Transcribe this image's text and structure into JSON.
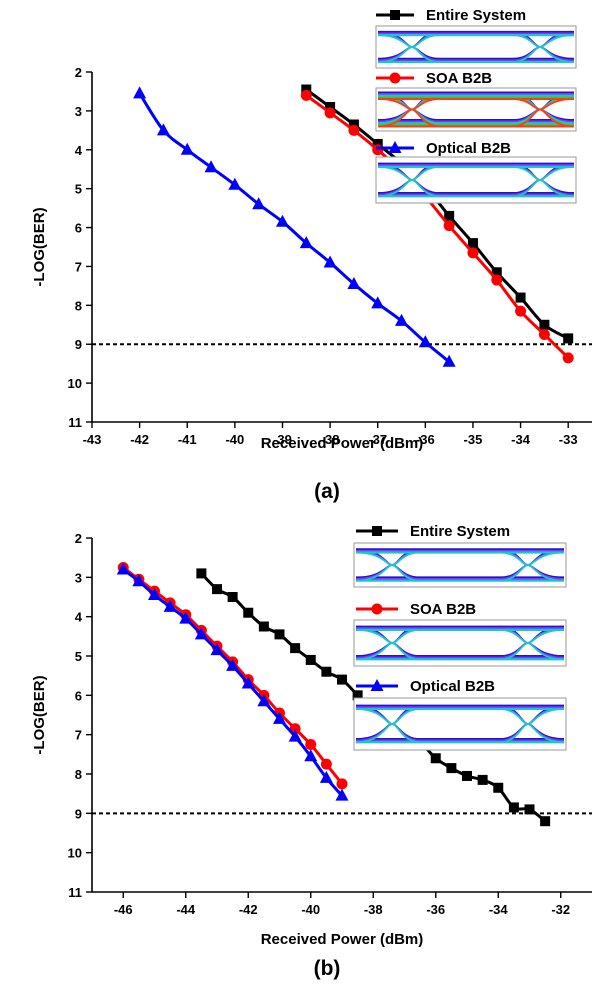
{
  "chart_data": [
    {
      "panel_label": "(a)",
      "type": "line",
      "xlabel": "Received Power (dBm)",
      "ylabel": "-LOG(BER)",
      "xlim": [
        -43,
        -32.5
      ],
      "ylim": [
        2,
        11
      ],
      "y_scale": "reversed",
      "xticks": [
        -43,
        -42,
        -41,
        -40,
        -39,
        -38,
        -37,
        -36,
        -35,
        -34,
        -33
      ],
      "yticks": [
        2,
        3,
        4,
        5,
        6,
        7,
        8,
        9,
        10,
        11
      ],
      "reference_line": {
        "y": 9,
        "style": "dashed",
        "color": "#000000"
      },
      "legend_position": "top-right",
      "series": [
        {
          "name": "Entire System",
          "color": "#000000",
          "marker": "square",
          "x": [
            -38.5,
            -38,
            -37.5,
            -37,
            -36.5,
            -36,
            -35.5,
            -35,
            -34.5,
            -34,
            -33.5,
            -33
          ],
          "y": [
            2.45,
            2.9,
            3.35,
            3.85,
            4.35,
            4.95,
            5.7,
            6.4,
            7.15,
            7.8,
            8.5,
            8.85
          ]
        },
        {
          "name": "SOA B2B",
          "color": "#ff0000",
          "marker": "circle",
          "x": [
            -38.5,
            -38,
            -37.5,
            -37,
            -36.5,
            -36,
            -35.5,
            -35,
            -34.5,
            -34,
            -33.5,
            -33
          ],
          "y": [
            2.6,
            3.05,
            3.5,
            4.0,
            4.55,
            5.2,
            5.95,
            6.65,
            7.35,
            8.15,
            8.75,
            9.35
          ]
        },
        {
          "name": "Optical B2B",
          "color": "#0000ff",
          "marker": "triangle",
          "x": [
            -42,
            -41.5,
            -41,
            -40.5,
            -40,
            -39.5,
            -39,
            -38.5,
            -38,
            -37.5,
            -37,
            -36.5,
            -36,
            -35.5
          ],
          "y": [
            2.55,
            3.5,
            4.0,
            4.45,
            4.9,
            5.4,
            5.85,
            6.4,
            6.9,
            7.45,
            7.95,
            8.4,
            8.95,
            9.45
          ]
        }
      ]
    },
    {
      "panel_label": "(b)",
      "type": "line",
      "xlabel": "Received Power (dBm)",
      "ylabel": "-LOG(BER)",
      "xlim": [
        -47,
        -31
      ],
      "ylim": [
        2,
        11
      ],
      "y_scale": "reversed",
      "xticks": [
        -46,
        -44,
        -42,
        -40,
        -38,
        -36,
        -34,
        -32
      ],
      "yticks": [
        2,
        3,
        4,
        5,
        6,
        7,
        8,
        9,
        10,
        11
      ],
      "reference_line": {
        "y": 9,
        "style": "dashed",
        "color": "#000000"
      },
      "legend_position": "top-right",
      "series": [
        {
          "name": "Entire System",
          "color": "#000000",
          "marker": "square",
          "x": [
            -43.5,
            -43,
            -42.5,
            -42,
            -41.5,
            -41,
            -40.5,
            -40,
            -39.5,
            -39,
            -38.5,
            -38,
            -37.5,
            -37,
            -36.5,
            -36,
            -35.5,
            -35,
            -34.5,
            -34,
            -33.5,
            -33,
            -32.5
          ],
          "y": [
            2.9,
            3.3,
            3.5,
            3.9,
            4.25,
            4.45,
            4.8,
            5.1,
            5.4,
            5.6,
            6.0,
            6.4,
            6.8,
            7.05,
            7.2,
            7.6,
            7.85,
            8.05,
            8.15,
            8.35,
            8.85,
            8.9,
            9.2
          ]
        },
        {
          "name": "SOA B2B",
          "color": "#ff0000",
          "marker": "circle",
          "x": [
            -46,
            -45.5,
            -45,
            -44.5,
            -44,
            -43.5,
            -43,
            -42.5,
            -42,
            -41.5,
            -41,
            -40.5,
            -40,
            -39.5,
            -39
          ],
          "y": [
            2.75,
            3.05,
            3.35,
            3.65,
            3.95,
            4.35,
            4.75,
            5.15,
            5.6,
            6.0,
            6.45,
            6.85,
            7.25,
            7.75,
            8.25
          ]
        },
        {
          "name": "Optical B2B",
          "color": "#0000ff",
          "marker": "triangle",
          "x": [
            -46,
            -45.5,
            -45,
            -44.5,
            -44,
            -43.5,
            -43,
            -42.5,
            -42,
            -41.5,
            -41,
            -40.5,
            -40,
            -39.5,
            -39
          ],
          "y": [
            2.8,
            3.1,
            3.45,
            3.75,
            4.05,
            4.45,
            4.85,
            5.25,
            5.7,
            6.15,
            6.6,
            7.05,
            7.55,
            8.1,
            8.55
          ]
        }
      ]
    }
  ]
}
